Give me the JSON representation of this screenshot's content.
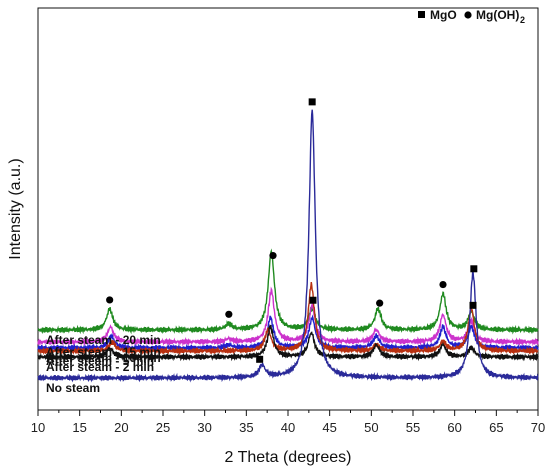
{
  "chart_data": {
    "type": "line",
    "title": "",
    "xlabel": "2 Theta (degrees)",
    "ylabel": "Intensity (a.u.)",
    "xlim": [
      10,
      70
    ],
    "xticks": [
      10,
      15,
      20,
      25,
      30,
      35,
      40,
      45,
      50,
      55,
      60,
      65,
      70
    ],
    "grid": false,
    "legend": {
      "placement": "top-right",
      "entries": [
        {
          "marker": "square",
          "label": "MgO",
          "sub": ""
        },
        {
          "marker": "circle",
          "label": "Mg(OH)",
          "sub": "2"
        }
      ]
    },
    "peak_profile": {
      "type": "lorentzian",
      "hwhm": 0.45,
      "noise_amplitude": 0.01
    },
    "series": [
      {
        "name": "After steam - 20 min",
        "color": "#1f8a1f",
        "baseline_offset": 0.16,
        "peaks": [
          {
            "x": 18.6,
            "h": 0.07
          },
          {
            "x": 32.9,
            "h": 0.02
          },
          {
            "x": 38.0,
            "h": 0.26
          },
          {
            "x": 42.9,
            "h": 0.07
          },
          {
            "x": 50.8,
            "h": 0.07
          },
          {
            "x": 58.6,
            "h": 0.12
          },
          {
            "x": 62.0,
            "h": 0.06
          }
        ],
        "markers": [
          {
            "x": 18.6,
            "symbol": "circle"
          },
          {
            "x": 32.9,
            "symbol": "circle"
          },
          {
            "x": 38.2,
            "symbol": "circle"
          },
          {
            "x": 43.0,
            "symbol": "square"
          },
          {
            "x": 51.0,
            "symbol": "circle"
          },
          {
            "x": 58.6,
            "symbol": "circle"
          },
          {
            "x": 62.2,
            "symbol": "square"
          }
        ]
      },
      {
        "name": "After steam - 15 min",
        "color": "#cc33cc",
        "baseline_offset": 0.12,
        "peaks": [
          {
            "x": 18.7,
            "h": 0.05
          },
          {
            "x": 32.9,
            "h": 0.01
          },
          {
            "x": 38.0,
            "h": 0.17
          },
          {
            "x": 42.9,
            "h": 0.12
          },
          {
            "x": 50.6,
            "h": 0.04
          },
          {
            "x": 58.6,
            "h": 0.09
          },
          {
            "x": 62.0,
            "h": 0.07
          }
        ],
        "markers": []
      },
      {
        "name": "After steam - 10 min",
        "color": "#2020cc",
        "baseline_offset": 0.1,
        "peaks": [
          {
            "x": 18.8,
            "h": 0.04
          },
          {
            "x": 32.9,
            "h": 0.01
          },
          {
            "x": 37.9,
            "h": 0.1
          },
          {
            "x": 42.9,
            "h": 0.1
          },
          {
            "x": 50.6,
            "h": 0.04
          },
          {
            "x": 58.6,
            "h": 0.07
          },
          {
            "x": 62.0,
            "h": 0.07
          }
        ],
        "markers": []
      },
      {
        "name": "After steam - 5 min",
        "color": "#b83010",
        "baseline_offset": 0.09,
        "peaks": [
          {
            "x": 18.9,
            "h": 0.03
          },
          {
            "x": 37.6,
            "h": 0.07
          },
          {
            "x": 42.8,
            "h": 0.22
          },
          {
            "x": 50.6,
            "h": 0.02
          },
          {
            "x": 58.6,
            "h": 0.03
          },
          {
            "x": 62.0,
            "h": 0.14
          }
        ],
        "markers": []
      },
      {
        "name": "After steam - 2 min",
        "color": "#111111",
        "baseline_offset": 0.07,
        "peaks": [
          {
            "x": 18.6,
            "h": 0.03
          },
          {
            "x": 37.9,
            "h": 0.1
          },
          {
            "x": 42.8,
            "h": 0.08
          },
          {
            "x": 50.6,
            "h": 0.04
          },
          {
            "x": 58.6,
            "h": 0.04
          },
          {
            "x": 62.0,
            "h": 0.03
          }
        ],
        "markers": []
      },
      {
        "name": "No steam",
        "color": "#2a2a99",
        "baseline_offset": 0.0,
        "peaks": [
          {
            "x": 36.9,
            "h": 0.04
          },
          {
            "x": 42.9,
            "h": 0.89
          },
          {
            "x": 62.2,
            "h": 0.35
          }
        ],
        "markers": [
          {
            "x": 36.6,
            "symbol": "square"
          },
          {
            "x": 42.9,
            "symbol": "square"
          },
          {
            "x": 62.3,
            "symbol": "square"
          }
        ]
      }
    ]
  }
}
